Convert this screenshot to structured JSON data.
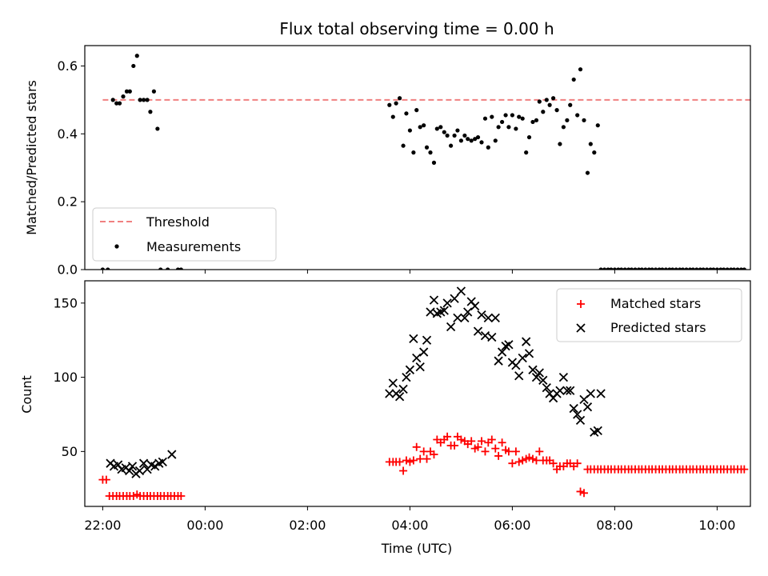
{
  "chart_data": [
    {
      "type": "scatter",
      "title": "Flux total observing time = 0.00 h",
      "ylabel": "Matched/Predicted stars",
      "xlabel": "",
      "xlim": [
        -0.35,
        12.65
      ],
      "ylim": [
        0.0,
        0.66
      ],
      "yticks": [
        0.0,
        0.2,
        0.4,
        0.6
      ],
      "ytick_labels": [
        "0.0",
        "0.2",
        "0.4",
        "0.6"
      ],
      "xticks": [
        0,
        2,
        4,
        6,
        8,
        10,
        12
      ],
      "grid": false,
      "legend": {
        "position": "lower-left",
        "entries": [
          "Threshold",
          "Measurements"
        ]
      },
      "colors": {
        "threshold": "#f08080",
        "measurements": "#000000"
      },
      "series": [
        {
          "name": "Threshold",
          "kind": "dashed-line",
          "x": [
            0.0,
            12.8
          ],
          "y": [
            0.5,
            0.5
          ]
        },
        {
          "name": "Measurements",
          "kind": "dots",
          "x": [
            0.0,
            0.1,
            0.2,
            0.27,
            0.33,
            0.4,
            0.47,
            0.53,
            0.6,
            0.67,
            0.73,
            0.8,
            0.87,
            0.93,
            1.0,
            1.07,
            1.13,
            1.27,
            1.47,
            1.53,
            5.6,
            5.67,
            5.73,
            5.8,
            5.87,
            5.93,
            6.0,
            6.07,
            6.13,
            6.2,
            6.27,
            6.33,
            6.4,
            6.47,
            6.53,
            6.6,
            6.67,
            6.73,
            6.8,
            6.87,
            6.93,
            7.0,
            7.07,
            7.13,
            7.2,
            7.27,
            7.33,
            7.4,
            7.47,
            7.53,
            7.6,
            7.67,
            7.73,
            7.8,
            7.87,
            7.93,
            8.0,
            8.07,
            8.13,
            8.2,
            8.27,
            8.33,
            8.4,
            8.47,
            8.53,
            8.6,
            8.67,
            8.73,
            8.8,
            8.87,
            8.93,
            9.0,
            9.07,
            9.13,
            9.2,
            9.27,
            9.33,
            9.4,
            9.47,
            9.53,
            9.6,
            9.67,
            9.73,
            9.8,
            9.87,
            9.93,
            10.0,
            10.07,
            10.13,
            10.2,
            10.27,
            10.33,
            10.4,
            10.47,
            10.53,
            10.6,
            10.67,
            10.73,
            10.8,
            10.87,
            10.93,
            11.0,
            11.07,
            11.13,
            11.2,
            11.27,
            11.33,
            11.4,
            11.47,
            11.53,
            11.6,
            11.67,
            11.73,
            11.8,
            11.87,
            11.93,
            12.0,
            12.07,
            12.13,
            12.2,
            12.27,
            12.33,
            12.4,
            12.47,
            12.53
          ],
          "y": [
            0.0,
            0.0,
            0.5,
            0.49,
            0.49,
            0.51,
            0.525,
            0.525,
            0.6,
            0.63,
            0.5,
            0.5,
            0.5,
            0.465,
            0.525,
            0.415,
            0.0,
            0.0,
            0.0,
            0.0,
            0.485,
            0.45,
            0.49,
            0.505,
            0.365,
            0.46,
            0.41,
            0.345,
            0.47,
            0.42,
            0.425,
            0.36,
            0.345,
            0.315,
            0.415,
            0.42,
            0.405,
            0.395,
            0.365,
            0.395,
            0.41,
            0.38,
            0.395,
            0.385,
            0.38,
            0.385,
            0.39,
            0.375,
            0.445,
            0.36,
            0.45,
            0.38,
            0.42,
            0.435,
            0.455,
            0.42,
            0.455,
            0.415,
            0.45,
            0.445,
            0.345,
            0.39,
            0.435,
            0.44,
            0.495,
            0.465,
            0.5,
            0.485,
            0.505,
            0.47,
            0.37,
            0.42,
            0.44,
            0.485,
            0.56,
            0.455,
            0.59,
            0.44,
            0.285,
            0.37,
            0.345,
            0.425,
            0.0,
            0.0,
            0.0,
            0.0,
            0.0,
            0.0,
            0.0,
            0.0,
            0.0,
            0.0,
            0.0,
            0.0,
            0.0,
            0.0,
            0.0,
            0.0,
            0.0,
            0.0,
            0.0,
            0.0,
            0.0,
            0.0,
            0.0,
            0.0,
            0.0,
            0.0,
            0.0,
            0.0,
            0.0,
            0.0,
            0.0,
            0.0,
            0.0,
            0.0,
            0.0,
            0.0,
            0.0,
            0.0,
            0.0,
            0.0,
            0.0,
            0.0,
            0.0
          ]
        }
      ]
    },
    {
      "type": "scatter",
      "title": "",
      "ylabel": "Count",
      "xlabel": "Time (UTC)",
      "xlim": [
        -0.35,
        12.65
      ],
      "ylim": [
        13,
        165
      ],
      "yticks": [
        50,
        100,
        150
      ],
      "ytick_labels": [
        "50",
        "100",
        "150"
      ],
      "xticks": [
        0,
        2,
        4,
        6,
        8,
        10,
        12
      ],
      "xtick_labels": [
        "22:00",
        "00:00",
        "02:00",
        "04:00",
        "06:00",
        "08:00",
        "10:00"
      ],
      "grid": false,
      "legend": {
        "position": "upper-right",
        "entries": [
          "Matched stars",
          "Predicted stars"
        ]
      },
      "colors": {
        "matched": "#ff0000",
        "predicted": "#000000"
      },
      "series": [
        {
          "name": "Matched stars",
          "marker": "plus",
          "x": [
            0.0,
            0.07,
            0.13,
            0.2,
            0.27,
            0.33,
            0.4,
            0.47,
            0.53,
            0.6,
            0.67,
            0.73,
            0.8,
            0.87,
            0.93,
            1.0,
            1.07,
            1.13,
            1.2,
            1.27,
            1.33,
            1.4,
            1.47,
            1.53,
            5.6,
            5.67,
            5.73,
            5.8,
            5.87,
            5.93,
            6.0,
            6.07,
            6.13,
            6.2,
            6.27,
            6.33,
            6.4,
            6.47,
            6.53,
            6.6,
            6.67,
            6.73,
            6.8,
            6.87,
            6.93,
            7.0,
            7.07,
            7.13,
            7.2,
            7.27,
            7.33,
            7.4,
            7.47,
            7.53,
            7.6,
            7.67,
            7.73,
            7.8,
            7.87,
            7.93,
            8.0,
            8.07,
            8.13,
            8.2,
            8.27,
            8.33,
            8.4,
            8.47,
            8.53,
            8.6,
            8.67,
            8.73,
            8.8,
            8.87,
            8.93,
            9.0,
            9.07,
            9.13,
            9.2,
            9.27,
            9.33,
            9.4,
            9.47,
            9.53,
            9.6,
            9.67,
            9.73,
            9.8,
            9.87,
            9.93,
            10.0,
            10.07,
            10.13,
            10.2,
            10.27,
            10.33,
            10.4,
            10.47,
            10.53,
            10.6,
            10.67,
            10.73,
            10.8,
            10.87,
            10.93,
            11.0,
            11.07,
            11.13,
            11.2,
            11.27,
            11.33,
            11.4,
            11.47,
            11.53,
            11.6,
            11.67,
            11.73,
            11.8,
            11.87,
            11.93,
            12.0,
            12.07,
            12.13,
            12.2,
            12.27,
            12.33,
            12.4,
            12.47,
            12.53
          ],
          "y": [
            31,
            31,
            20,
            20,
            20,
            20,
            20,
            20,
            20,
            20,
            21,
            20,
            20,
            20,
            20,
            20,
            20,
            20,
            20,
            20,
            20,
            20,
            20,
            20,
            43,
            43,
            43,
            43,
            37,
            44,
            43,
            44,
            53,
            45,
            50,
            45,
            50,
            48,
            58,
            56,
            58,
            60,
            54,
            54,
            60,
            58,
            57,
            55,
            57,
            52,
            53,
            57,
            50,
            56,
            58,
            52,
            47,
            56,
            51,
            50,
            42,
            50,
            43,
            44,
            45,
            46,
            45,
            44,
            50,
            44,
            44,
            44,
            42,
            38,
            40,
            40,
            42,
            42,
            40,
            42,
            23,
            22,
            38,
            38,
            38,
            38,
            38,
            38,
            38,
            38,
            38,
            38,
            38,
            38,
            38,
            38,
            38,
            38,
            38,
            38,
            38,
            38,
            38,
            38,
            38,
            38,
            38,
            38,
            38,
            38,
            38,
            38,
            38,
            38,
            38,
            38,
            38,
            38,
            38,
            38,
            38,
            38,
            38,
            38,
            38,
            38,
            38,
            38,
            38
          ]
        },
        {
          "name": "Predicted stars",
          "marker": "x",
          "x": [
            0.15,
            0.22,
            0.3,
            0.37,
            0.45,
            0.52,
            0.58,
            0.65,
            0.72,
            0.8,
            0.87,
            0.95,
            1.02,
            1.1,
            1.17,
            1.35,
            5.6,
            5.67,
            5.73,
            5.8,
            5.87,
            5.93,
            6.0,
            6.07,
            6.13,
            6.2,
            6.27,
            6.33,
            6.4,
            6.47,
            6.53,
            6.6,
            6.67,
            6.73,
            6.8,
            6.87,
            6.93,
            7.0,
            7.07,
            7.13,
            7.2,
            7.27,
            7.33,
            7.4,
            7.47,
            7.53,
            7.6,
            7.67,
            7.73,
            7.8,
            7.87,
            7.93,
            8.0,
            8.07,
            8.13,
            8.2,
            8.27,
            8.33,
            8.4,
            8.47,
            8.53,
            8.6,
            8.67,
            8.73,
            8.8,
            8.87,
            8.93,
            9.0,
            9.07,
            9.13,
            9.2,
            9.27,
            9.33,
            9.4,
            9.47,
            9.53,
            9.6,
            9.67,
            9.73
          ],
          "y": [
            42,
            40,
            41,
            38,
            39,
            37,
            40,
            35,
            37,
            42,
            38,
            41,
            40,
            42,
            43,
            48,
            89,
            96,
            89,
            87,
            92,
            100,
            105,
            126,
            113,
            107,
            117,
            125,
            144,
            152,
            143,
            144,
            145,
            150,
            134,
            153,
            140,
            158,
            140,
            144,
            151,
            148,
            131,
            142,
            128,
            140,
            127,
            140,
            111,
            117,
            121,
            122,
            110,
            108,
            101,
            113,
            124,
            116,
            105,
            100,
            103,
            98,
            93,
            89,
            86,
            89,
            91,
            100,
            91,
            91,
            79,
            75,
            71,
            85,
            80,
            89,
            63,
            64,
            89
          ]
        }
      ]
    }
  ]
}
